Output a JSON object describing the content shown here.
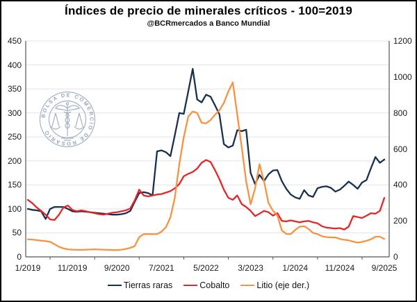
{
  "title": "Índices de precio de minerales críticos - 100=2019",
  "subtitle": "@BCRmercados a Banco Mundial",
  "watermark": {
    "text": "BOLSA DE COMERCIO DE ROSARIO"
  },
  "chart_data": {
    "type": "line",
    "title": "Índices de precio de minerales críticos - 100=2019",
    "subtitle": "@BCRmercados a Banco Mundial",
    "x_start": "1/2019",
    "x_end": "9/2025",
    "x_frequency": "monthly",
    "x_tick_labels": [
      "1/2019",
      "11/2019",
      "9/2020",
      "7/2021",
      "5/2022",
      "3/2023",
      "1/2024",
      "11/2024",
      "9/2025"
    ],
    "left_axis": {
      "min": 0,
      "max": 450,
      "step": 50,
      "tick_labels": [
        "0",
        "50",
        "100",
        "150",
        "200",
        "250",
        "300",
        "350",
        "400",
        "450"
      ]
    },
    "right_axis": {
      "min": 0,
      "max": 1200,
      "step": 200,
      "tick_labels": [
        "0",
        "200",
        "400",
        "600",
        "800",
        "1000",
        "1200"
      ]
    },
    "grid": "horizontal-light",
    "legend_position": "bottom",
    "series": [
      {
        "name": "Tierras raras",
        "axis": "left",
        "color": "#16304e",
        "values": [
          100,
          98,
          97,
          95,
          79,
          100,
          104,
          104,
          104,
          100,
          95,
          94,
          95,
          94,
          93,
          92,
          91,
          90,
          89,
          88,
          88,
          89,
          91,
          96,
          115,
          133,
          135,
          133,
          128,
          220,
          222,
          218,
          210,
          254,
          300,
          298,
          345,
          392,
          328,
          322,
          338,
          334,
          316,
          297,
          235,
          228,
          232,
          264,
          262,
          265,
          175,
          152,
          171,
          158,
          172,
          180,
          181,
          158,
          142,
          130,
          124,
          121,
          139,
          128,
          125,
          143,
          146,
          147,
          144,
          136,
          140,
          148,
          157,
          150,
          142,
          155,
          160,
          185,
          208,
          196,
          203
        ]
      },
      {
        "name": "Cobalto",
        "axis": "left",
        "color": "#e52528",
        "values": [
          119,
          112,
          103,
          96,
          88,
          78,
          77,
          88,
          103,
          107,
          98,
          95,
          97,
          95,
          93,
          91,
          89,
          88,
          90,
          92,
          93,
          95,
          97,
          101,
          118,
          140,
          128,
          126,
          128,
          130,
          131,
          134,
          137,
          143,
          152,
          168,
          173,
          177,
          184,
          196,
          202,
          198,
          181,
          162,
          140,
          123,
          119,
          128,
          110,
          104,
          96,
          85,
          90,
          96,
          93,
          86,
          91,
          75,
          74,
          76,
          74,
          72,
          74,
          75,
          72,
          70,
          64,
          61,
          60,
          59,
          60,
          57,
          63,
          85,
          83,
          81,
          86,
          91,
          90,
          96,
          123
        ]
      },
      {
        "name": "Litio (eje der.)",
        "axis": "right",
        "color": "#f79240",
        "values": [
          98,
          96,
          93,
          90,
          88,
          84,
          70,
          56,
          47,
          42,
          40,
          39,
          39,
          40,
          41,
          42,
          41,
          40,
          39,
          38,
          38,
          40,
          44,
          50,
          60,
          110,
          126,
          127,
          126,
          127,
          140,
          165,
          220,
          330,
          515,
          665,
          780,
          808,
          800,
          745,
          742,
          760,
          790,
          815,
          855,
          920,
          970,
          790,
          610,
          420,
          292,
          380,
          515,
          420,
          300,
          257,
          230,
          147,
          128,
          127,
          150,
          168,
          170,
          155,
          133,
          127,
          115,
          110,
          108,
          108,
          100,
          95,
          92,
          85,
          79,
          83,
          89,
          98,
          112,
          112,
          100
        ]
      }
    ]
  }
}
